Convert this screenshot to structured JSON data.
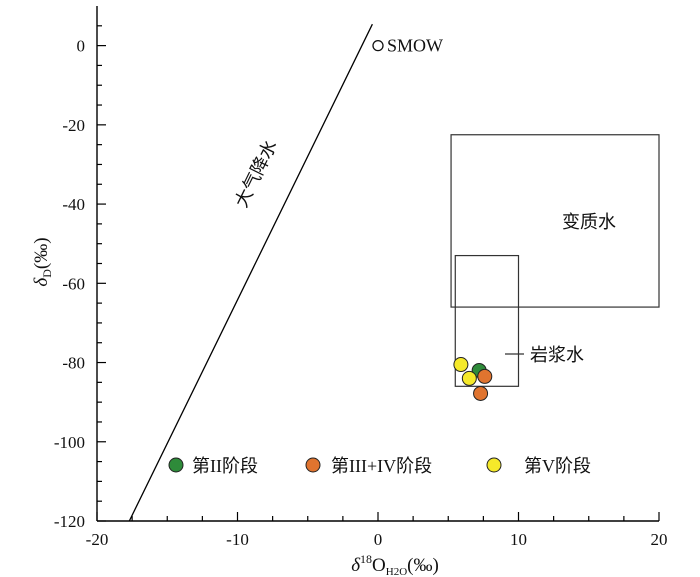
{
  "chart_data": {
    "type": "scatter",
    "xlim": [
      -20,
      20
    ],
    "ylim": [
      -120,
      10
    ],
    "x_ticks": [
      -20,
      -10,
      0,
      10,
      20
    ],
    "y_ticks": [
      0,
      -20,
      -40,
      -60,
      -80,
      -100,
      -120
    ],
    "xlabel": {
      "delta": "δ",
      "sup": "18",
      "main": "O",
      "sub": "H2O",
      "unit": "(‰)"
    },
    "ylabel": {
      "delta": "δ",
      "sub": "D",
      "unit": "(‰)"
    },
    "grid": false,
    "meteoric_water_line": {
      "label": "大气降水",
      "x": [
        -17.7,
        -0.4
      ],
      "y": [
        -120,
        5.4
      ]
    },
    "smow": {
      "label": "SMOW",
      "x": 0,
      "y": 0
    },
    "regions": [
      {
        "label": "变质水",
        "x": [
          5.2,
          20
        ],
        "y": [
          -66,
          -22.5
        ]
      },
      {
        "label": "岩浆水",
        "x": [
          5.5,
          10
        ],
        "y": [
          -86,
          -53
        ]
      }
    ],
    "series": [
      {
        "name": "第II阶段",
        "color": "#2e8b3a",
        "points": [
          [
            7.2,
            -82
          ]
        ]
      },
      {
        "name": "第III+IV阶段",
        "color": "#e0742f",
        "points": [
          [
            7.6,
            -83.5
          ],
          [
            7.3,
            -87.8
          ]
        ]
      },
      {
        "name": "第V阶段",
        "color": "#f5e92a",
        "points": [
          [
            5.9,
            -80.5
          ],
          [
            6.5,
            -84
          ]
        ]
      }
    ],
    "legend": "bottom"
  }
}
